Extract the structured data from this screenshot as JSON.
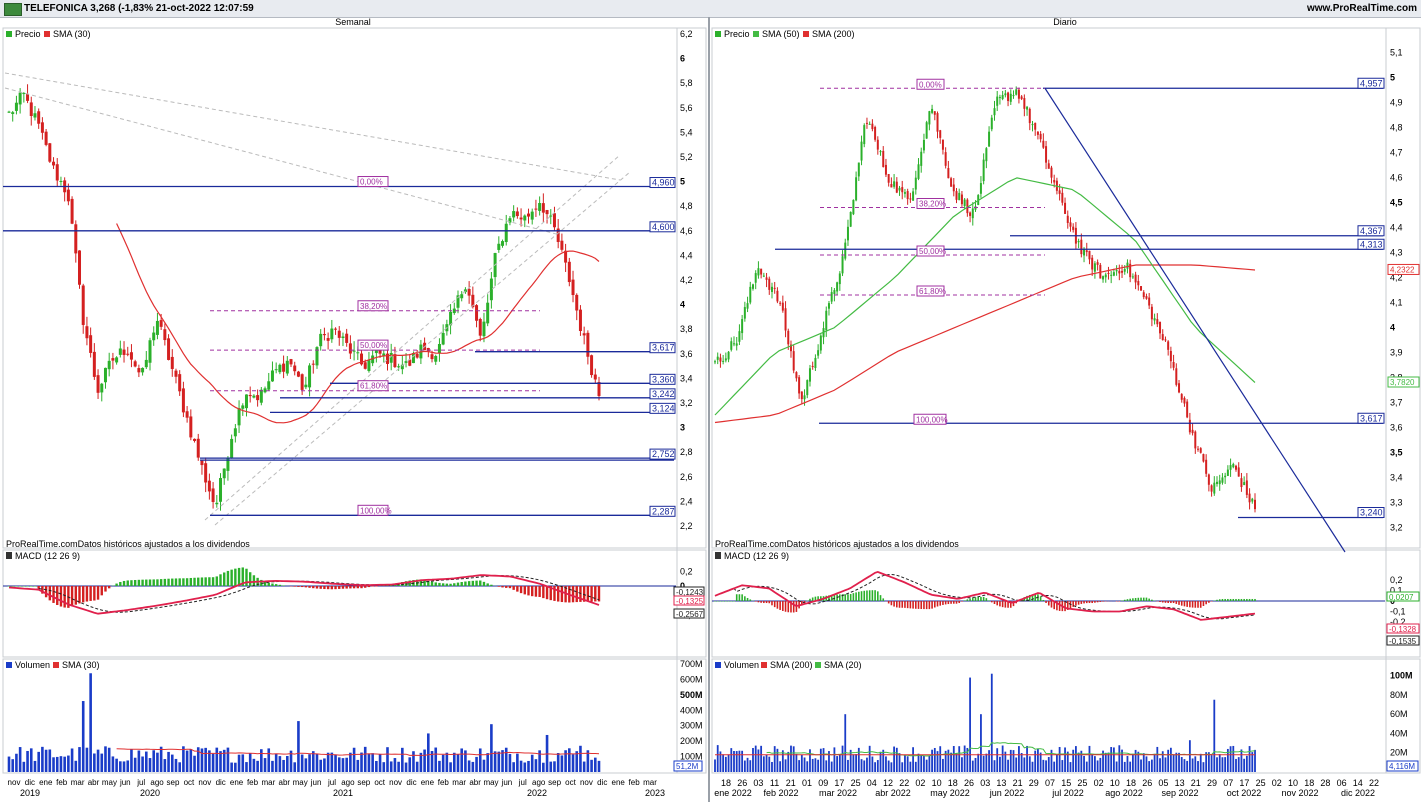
{
  "header": {
    "ticker": "TELEFONICA 3,268 (-1,83% 21-oct-2022 12:07:59",
    "site": "www.ProRealTime.com"
  },
  "colors": {
    "up": "#2bb02b",
    "down": "#d42020",
    "sma_red": "#e03030",
    "sma_green": "#44bb44",
    "level": "#1a2a9a",
    "fib": "#a030a0",
    "volume": "#1a3cc8",
    "macd": "#e0204c"
  },
  "weekly": {
    "title": "Semanal",
    "legend": [
      {
        "label": "Precio",
        "color": "#2bb02b"
      },
      {
        "label": "SMA (30)",
        "color": "#e03030"
      }
    ],
    "source_note": "ProRealTime.comDatos históricos ajustados a los dividendos",
    "y_ticks": [
      "6,2",
      "6",
      "5,8",
      "5,6",
      "5,4",
      "5,2",
      "5",
      "4,8",
      "4,6",
      "4,4",
      "4,2",
      "4",
      "3,8",
      "3,6",
      "3,4",
      "3,2",
      "3",
      "2,8",
      "2,6",
      "2,4",
      "2,2"
    ],
    "levels": [
      {
        "label": "4,960",
        "value": 4.96
      },
      {
        "label": "4,600",
        "value": 4.6
      },
      {
        "label": "3,617",
        "value": 3.617
      },
      {
        "label": "3,360",
        "value": 3.36
      },
      {
        "label": "3,242",
        "value": 3.242
      },
      {
        "label": "3,124",
        "value": 3.124
      },
      {
        "label": "2,752",
        "value": 2.752
      },
      {
        "label": "2,287",
        "value": 2.287
      }
    ],
    "fib_labels": [
      {
        "label": "0,00%",
        "value": 4.96
      },
      {
        "label": "38,20%",
        "value": 3.95
      },
      {
        "label": "50,00%",
        "value": 3.63
      },
      {
        "label": "61,80%",
        "value": 3.3
      },
      {
        "label": "100,00%",
        "value": 2.287
      }
    ],
    "macd": {
      "legend": "MACD (12 26 9)",
      "ticks": [
        "0,2",
        "0",
        "-0,2",
        "-0,4"
      ],
      "values": [
        "-0,1243",
        "-0,1325",
        "-0,2567"
      ]
    },
    "volume": {
      "legend": [
        {
          "label": "Volumen",
          "color": "#1a3cc8"
        },
        {
          "label": "SMA (30)",
          "color": "#e03030"
        }
      ],
      "ticks": [
        "700M",
        "600M",
        "500M",
        "400M",
        "300M",
        "200M",
        "100M"
      ],
      "value": "51,2M"
    },
    "x_months": [
      "nov",
      "dic",
      "ene",
      "feb",
      "mar",
      "abr",
      "may",
      "jun",
      "jul",
      "ago",
      "sep",
      "oct",
      "nov",
      "dic",
      "ene",
      "feb",
      "mar",
      "abr",
      "may",
      "jun",
      "jul",
      "ago",
      "sep",
      "oct",
      "nov",
      "dic",
      "ene",
      "feb",
      "mar",
      "abr",
      "may",
      "jun",
      "jul",
      "ago",
      "sep",
      "oct",
      "nov",
      "dic",
      "ene",
      "feb",
      "mar"
    ],
    "x_years": [
      "2019",
      "2020",
      "2021",
      "2022",
      "2023"
    ]
  },
  "daily": {
    "title": "Diario",
    "legend": [
      {
        "label": "Precio",
        "color": "#2bb02b"
      },
      {
        "label": "SMA (50)",
        "color": "#44bb44"
      },
      {
        "label": "SMA (200)",
        "color": "#e03030"
      }
    ],
    "source_note": "ProRealTime.comDatos históricos ajustados a los dividendos",
    "y_ticks": [
      "5,1",
      "5",
      "4,9",
      "4,8",
      "4,7",
      "4,6",
      "4,5",
      "4,4",
      "4,3",
      "4,2",
      "4,1",
      "4",
      "3,9",
      "3,8",
      "3,7",
      "3,6",
      "3,5",
      "3,4",
      "3,3",
      "3,2"
    ],
    "levels": [
      {
        "label": "4,957",
        "value": 4.957
      },
      {
        "label": "4,367",
        "value": 4.367
      },
      {
        "label": "4,313",
        "value": 4.313
      },
      {
        "label": "3,617",
        "value": 3.617
      },
      {
        "label": "3,240",
        "value": 3.24
      }
    ],
    "sma_labels": [
      {
        "label": "4,2322",
        "value": 4.2322
      },
      {
        "label": "3,7820",
        "value": 3.782
      }
    ],
    "fib_labels": [
      {
        "label": "0,00%",
        "value": 4.957
      },
      {
        "label": "38,20%",
        "value": 4.48
      },
      {
        "label": "50,00%",
        "value": 4.29
      },
      {
        "label": "61,80%",
        "value": 4.13
      },
      {
        "label": "100,00%",
        "value": 3.617
      }
    ],
    "macd": {
      "legend": "MACD (12 26 9)",
      "ticks": [
        "0,2",
        "0,1",
        "0",
        "-0,1",
        "-0,2"
      ],
      "values": [
        "0,0207",
        "-0,1328",
        "-0,1535"
      ]
    },
    "volume": {
      "legend": [
        {
          "label": "Volumen",
          "color": "#1a3cc8"
        },
        {
          "label": "SMA (200)",
          "color": "#e03030"
        },
        {
          "label": "SMA (20)",
          "color": "#44bb44"
        }
      ],
      "ticks": [
        "100M",
        "80M",
        "60M",
        "40M",
        "20M"
      ],
      "value": "4,116M"
    },
    "x_days": [
      "18",
      "26",
      "03",
      "11",
      "21",
      "01",
      "09",
      "17",
      "25",
      "04",
      "12",
      "22",
      "02",
      "10",
      "18",
      "26",
      "03",
      "13",
      "21",
      "29",
      "07",
      "15",
      "25",
      "02",
      "10",
      "18",
      "26",
      "05",
      "13",
      "21",
      "29",
      "07",
      "17",
      "25",
      "02",
      "10",
      "18",
      "28",
      "06",
      "14",
      "22"
    ],
    "x_months": [
      "ene 2022",
      "feb 2022",
      "mar 2022",
      "abr 2022",
      "may 2022",
      "jun 2022",
      "jul 2022",
      "ago 2022",
      "sep 2022",
      "oct 2022",
      "nov 2022",
      "dic 2022"
    ]
  },
  "chart_data": [
    {
      "type": "line",
      "title": "Semanal",
      "ylim": [
        2.2,
        6.2
      ],
      "x": [
        "nov 2019",
        "ene 2020",
        "mar 2020",
        "may 2020",
        "jul 2020",
        "sep 2020",
        "nov 2020",
        "ene 2021",
        "mar 2021",
        "may 2021",
        "jul 2021",
        "sep 2021",
        "nov 2021",
        "ene 2022",
        "mar 2022",
        "may 2022",
        "jul 2022",
        "sep 2022",
        "oct 2022"
      ],
      "series": [
        {
          "name": "Precio",
          "values": [
            5.6,
            5.3,
            4.0,
            3.6,
            3.8,
            3.5,
            2.3,
            3.2,
            3.4,
            3.7,
            3.8,
            3.6,
            3.6,
            4.2,
            4.6,
            4.8,
            4.6,
            3.6,
            3.27
          ]
        },
        {
          "name": "SMA (30)",
          "values": [
            null,
            null,
            5.3,
            4.5,
            3.8,
            3.3,
            3.0,
            2.9,
            3.2,
            3.5,
            3.65,
            3.7,
            3.65,
            3.7,
            4.0,
            4.4,
            4.5,
            4.35,
            4.25
          ]
        }
      ]
    },
    {
      "type": "line",
      "title": "Diario",
      "ylim": [
        3.15,
        5.15
      ],
      "x": [
        "ene 2022",
        "feb 2022",
        "mar 2022",
        "abr 2022",
        "may 2022",
        "jun 2022",
        "jul 2022",
        "ago 2022",
        "sep 2022",
        "oct 2022"
      ],
      "series": [
        {
          "name": "Precio",
          "values": [
            3.85,
            4.25,
            3.8,
            4.85,
            4.75,
            4.95,
            4.3,
            4.2,
            3.7,
            3.27
          ]
        },
        {
          "name": "SMA (50)",
          "values": [
            3.65,
            3.9,
            4.0,
            4.2,
            4.45,
            4.6,
            4.55,
            4.35,
            4.0,
            3.78
          ]
        },
        {
          "name": "SMA (200)",
          "values": [
            3.62,
            3.65,
            3.75,
            3.9,
            4.0,
            4.1,
            4.2,
            4.25,
            4.25,
            4.23
          ]
        }
      ]
    }
  ]
}
